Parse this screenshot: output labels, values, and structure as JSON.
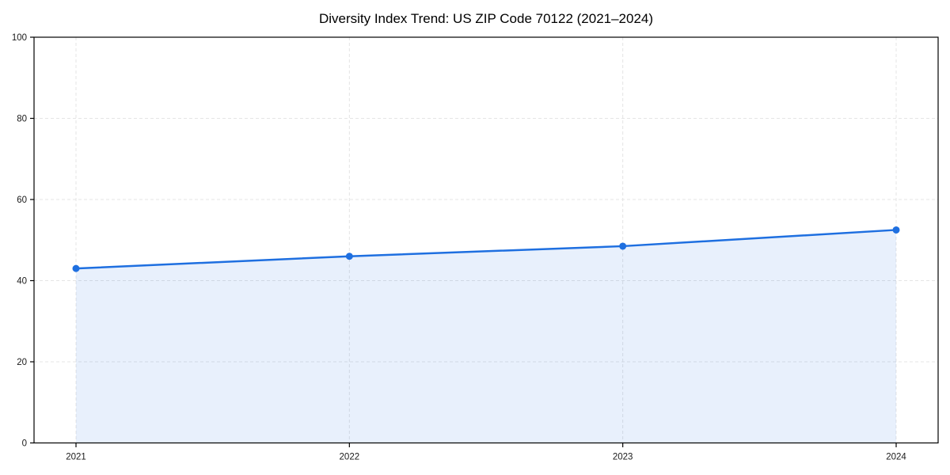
{
  "chart_data": {
    "type": "area",
    "title": "Diversity Index Trend: US ZIP Code 70122 (2021–2024)",
    "series_name": "Diversity Index",
    "categories": [
      "2021",
      "2022",
      "2023",
      "2024"
    ],
    "values": [
      43,
      46,
      48.5,
      52.5
    ],
    "xlabel": "",
    "ylabel": "",
    "ylim": [
      0,
      100
    ],
    "yticks": [
      0,
      20,
      40,
      60,
      80,
      100
    ],
    "grid": true,
    "grid_style": "dashed",
    "legend": false,
    "colors": {
      "line": "#1e6fe0",
      "marker": "#1e6fe0",
      "area_fill": "#1e6fe0",
      "area_opacity": 0.1,
      "gridline": "#e4e4e4",
      "axis": "#000000",
      "tick_label": "#1a1a1a",
      "title": "#000000",
      "background": "#ffffff"
    }
  }
}
